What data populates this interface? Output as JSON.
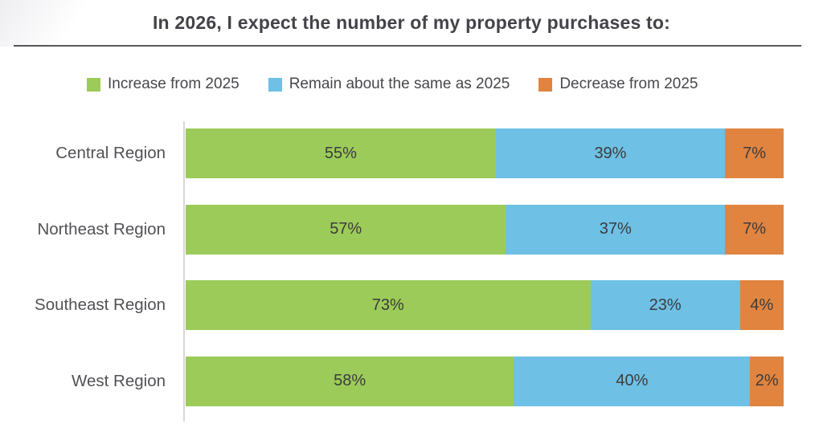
{
  "title": "In 2026, I expect the number of my property purchases to:",
  "legend": [
    {
      "label": "Increase from 2025",
      "color": "#9CCB5A"
    },
    {
      "label": "Remain about the same as 2025",
      "color": "#6EC0E5"
    },
    {
      "label": "Decrease from 2025",
      "color": "#E08440"
    }
  ],
  "chart_data": {
    "type": "bar",
    "orientation": "horizontal",
    "stacked": "100%",
    "title": "In 2026, I expect the number of my property purchases to:",
    "categories": [
      "Central Region",
      "Northeast Region",
      "Southeast Region",
      "West Region"
    ],
    "series": [
      {
        "name": "Increase from 2025",
        "color": "#9CCB5A",
        "values": [
          55,
          57,
          73,
          58
        ]
      },
      {
        "name": "Remain about the same as 2025",
        "color": "#6EC0E5",
        "values": [
          39,
          37,
          23,
          40
        ]
      },
      {
        "name": "Decrease from 2025",
        "color": "#E08440",
        "values": [
          7,
          7,
          4,
          2
        ]
      }
    ],
    "value_suffix": "%",
    "data_labels": true,
    "legend_position": "top",
    "grid": false,
    "xlim": [
      0,
      100
    ],
    "colors": {
      "text": "#3c3c3c",
      "axis_line": "#d8d8d8",
      "divider": "#57575c"
    }
  }
}
